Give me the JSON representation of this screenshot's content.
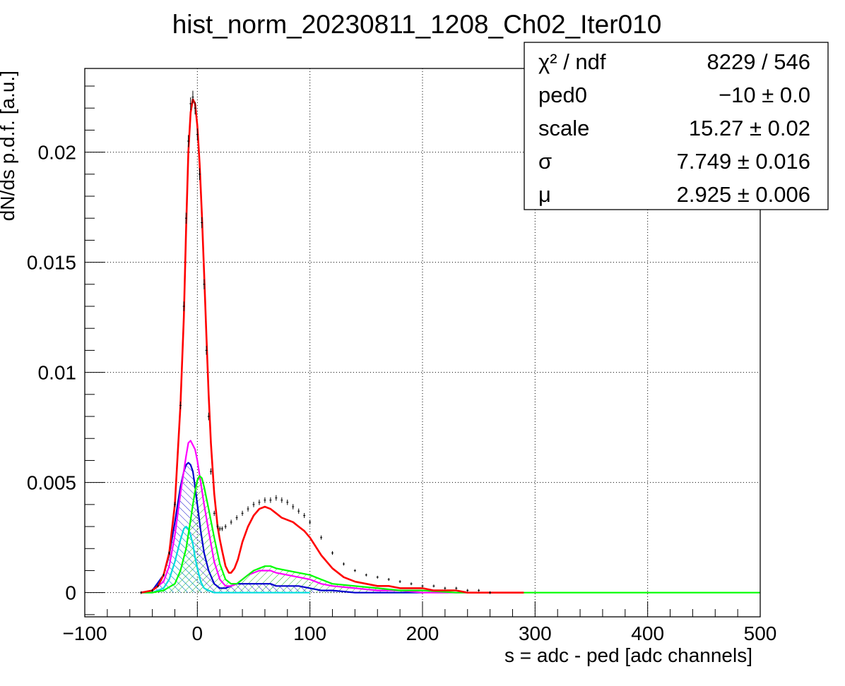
{
  "chart_data": {
    "type": "line",
    "title": "hist_norm_20230811_1208_Ch02_Iter010",
    "xlabel": "s = adc - ped [adc channels]",
    "ylabel": "dN/ds p.d.f. [a.u.]",
    "xlim": [
      -100,
      500
    ],
    "ylim": [
      -0.0011,
      0.0238
    ],
    "grid": true,
    "x_ticks": [
      {
        "v": -100,
        "label": "−100"
      },
      {
        "v": 0,
        "label": "0"
      },
      {
        "v": 100,
        "label": "100"
      },
      {
        "v": 200,
        "label": "200"
      },
      {
        "v": 300,
        "label": "300"
      },
      {
        "v": 400,
        "label": "400"
      },
      {
        "v": 500,
        "label": "500"
      }
    ],
    "y_ticks": [
      {
        "v": 0,
        "label": "0"
      },
      {
        "v": 0.005,
        "label": "0.005"
      },
      {
        "v": 0.01,
        "label": "0.01"
      },
      {
        "v": 0.015,
        "label": "0.015"
      },
      {
        "v": 0.02,
        "label": "0.02"
      }
    ],
    "stats": {
      "position": "top-right",
      "rows": [
        {
          "label": "χ² / ndf",
          "value": "8229 / 546"
        },
        {
          "label": "ped0",
          "value": "−10 ± 0.0"
        },
        {
          "label": "scale",
          "value": "15.27 ± 0.02"
        },
        {
          "label": "σ",
          "value": "7.749 ± 0.016"
        },
        {
          "label": "μ",
          "value": "2.925 ± 0.006"
        }
      ]
    },
    "data_points": {
      "color": "#000000",
      "x": [
        -50,
        -40,
        -35,
        -30,
        -25,
        -20,
        -15,
        -12,
        -10,
        -8,
        -6,
        -4,
        -2,
        0,
        2,
        4,
        6,
        8,
        10,
        12,
        15,
        18,
        20,
        22,
        25,
        30,
        35,
        40,
        45,
        50,
        55,
        60,
        65,
        70,
        75,
        80,
        85,
        90,
        95,
        100,
        110,
        120,
        130,
        140,
        150,
        160,
        170,
        180,
        190,
        200,
        210,
        220,
        230,
        240,
        250,
        260
      ],
      "y": [
        0.0,
        0.0001,
        0.0003,
        0.0008,
        0.0018,
        0.004,
        0.0085,
        0.013,
        0.017,
        0.0205,
        0.0222,
        0.0225,
        0.022,
        0.0208,
        0.019,
        0.0168,
        0.014,
        0.011,
        0.008,
        0.0055,
        0.0036,
        0.003,
        0.0029,
        0.0029,
        0.003,
        0.0032,
        0.0034,
        0.0036,
        0.0038,
        0.004,
        0.0041,
        0.0042,
        0.0042,
        0.0043,
        0.0042,
        0.0041,
        0.0039,
        0.0037,
        0.0035,
        0.0032,
        0.0025,
        0.0018,
        0.0013,
        0.001,
        0.0008,
        0.0007,
        0.0006,
        0.0005,
        0.0004,
        0.0003,
        0.0003,
        0.0002,
        0.0002,
        0.0001,
        0.0001,
        0.0
      ]
    },
    "series": [
      {
        "color": "#ff0000",
        "x": [
          -50,
          -40,
          -35,
          -30,
          -25,
          -20,
          -15,
          -12,
          -10,
          -8,
          -6,
          -4,
          -2,
          0,
          2,
          4,
          6,
          8,
          10,
          12,
          15,
          18,
          20,
          22,
          25,
          28,
          30,
          33,
          36,
          40,
          45,
          50,
          55,
          60,
          65,
          70,
          75,
          80,
          85,
          90,
          95,
          100,
          110,
          120,
          130,
          140,
          150,
          160,
          170,
          180,
          190,
          200,
          210,
          220,
          230,
          240,
          250,
          260,
          270,
          280,
          290
        ],
        "y": [
          0.0,
          0.0001,
          0.0003,
          0.0008,
          0.0018,
          0.004,
          0.0085,
          0.0125,
          0.0165,
          0.02,
          0.0218,
          0.0224,
          0.0222,
          0.0212,
          0.0195,
          0.0172,
          0.0145,
          0.0117,
          0.009,
          0.0068,
          0.0045,
          0.003,
          0.0024,
          0.0019,
          0.0012,
          0.0009,
          0.0009,
          0.0011,
          0.0015,
          0.0023,
          0.003,
          0.0035,
          0.0038,
          0.0039,
          0.0038,
          0.0036,
          0.0034,
          0.0033,
          0.0032,
          0.003,
          0.0028,
          0.0025,
          0.0017,
          0.0011,
          0.0007,
          0.0005,
          0.0004,
          0.0003,
          0.0003,
          0.0002,
          0.0002,
          0.0002,
          0.0001,
          0.0001,
          0.0001,
          0.0,
          0.0,
          0.0,
          0.0,
          0.0,
          0.0
        ]
      },
      {
        "color": "#ff00ff",
        "x": [
          -50,
          -40,
          -30,
          -25,
          -20,
          -15,
          -10,
          -8,
          -6,
          -4,
          -2,
          0,
          3,
          6,
          10,
          15,
          20,
          25,
          30,
          35,
          40,
          45,
          50,
          55,
          60,
          65,
          70,
          80,
          90,
          100,
          110,
          120,
          140,
          160,
          180,
          200,
          230,
          260
        ],
        "y": [
          0.0,
          0.0001,
          0.0005,
          0.0012,
          0.0026,
          0.0045,
          0.0062,
          0.0068,
          0.0069,
          0.0067,
          0.0065,
          0.006,
          0.005,
          0.004,
          0.0028,
          0.0014,
          0.0006,
          0.0003,
          0.0003,
          0.0004,
          0.0006,
          0.0008,
          0.0009,
          0.001,
          0.001,
          0.001,
          0.0009,
          0.0008,
          0.0007,
          0.0006,
          0.0004,
          0.0003,
          0.0002,
          0.0001,
          0.0001,
          0.0,
          0.0,
          0.0
        ]
      },
      {
        "color": "#00ff00",
        "x": [
          -50,
          -40,
          -30,
          -20,
          -15,
          -10,
          -6,
          -4,
          -2,
          0,
          2,
          4,
          6,
          10,
          15,
          20,
          25,
          30,
          35,
          40,
          45,
          50,
          55,
          60,
          65,
          70,
          80,
          90,
          100,
          110,
          120,
          140,
          160,
          180,
          200,
          230,
          260,
          290,
          400,
          500
        ],
        "y": [
          0.0,
          0.0,
          0.0001,
          0.0004,
          0.001,
          0.002,
          0.0033,
          0.004,
          0.0046,
          0.0051,
          0.0053,
          0.0052,
          0.0048,
          0.0038,
          0.0025,
          0.0013,
          0.0006,
          0.0004,
          0.0004,
          0.0006,
          0.0008,
          0.001,
          0.0011,
          0.0012,
          0.0012,
          0.0011,
          0.001,
          0.0009,
          0.0008,
          0.0006,
          0.0004,
          0.0003,
          0.0002,
          0.0001,
          0.0001,
          0.0,
          0.0,
          0.0,
          0.0,
          0.0
        ]
      },
      {
        "color": "#0000cc",
        "x": [
          -50,
          -40,
          -30,
          -25,
          -20,
          -15,
          -12,
          -10,
          -8,
          -6,
          -4,
          -2,
          0,
          3,
          6,
          10,
          15,
          20,
          25,
          30,
          35,
          40,
          45,
          50,
          55,
          60,
          65,
          70,
          80,
          90,
          100,
          110,
          120,
          140,
          160,
          200
        ],
        "y": [
          0.0,
          0.0001,
          0.0008,
          0.0017,
          0.0032,
          0.0048,
          0.0055,
          0.0058,
          0.0059,
          0.0058,
          0.0055,
          0.0048,
          0.004,
          0.0028,
          0.0018,
          0.001,
          0.0004,
          0.0002,
          0.0002,
          0.0003,
          0.0004,
          0.0004,
          0.0004,
          0.0004,
          0.0004,
          0.0004,
          0.0004,
          0.0003,
          0.0003,
          0.0003,
          0.0002,
          0.0001,
          0.0001,
          0.0,
          0.0,
          0.0
        ]
      },
      {
        "color": "#00dddd",
        "x": [
          -50,
          -40,
          -30,
          -25,
          -20,
          -15,
          -12,
          -10,
          -8,
          -6,
          -4,
          -2,
          0,
          3,
          6,
          10,
          15,
          20,
          30,
          50,
          100
        ],
        "y": [
          0.0,
          0.0,
          0.0002,
          0.0006,
          0.0014,
          0.0024,
          0.0029,
          0.003,
          0.0029,
          0.0026,
          0.0022,
          0.0016,
          0.0011,
          0.0005,
          0.0002,
          0.0001,
          0.0,
          0.0,
          0.0,
          0.0,
          0.0
        ]
      }
    ]
  }
}
